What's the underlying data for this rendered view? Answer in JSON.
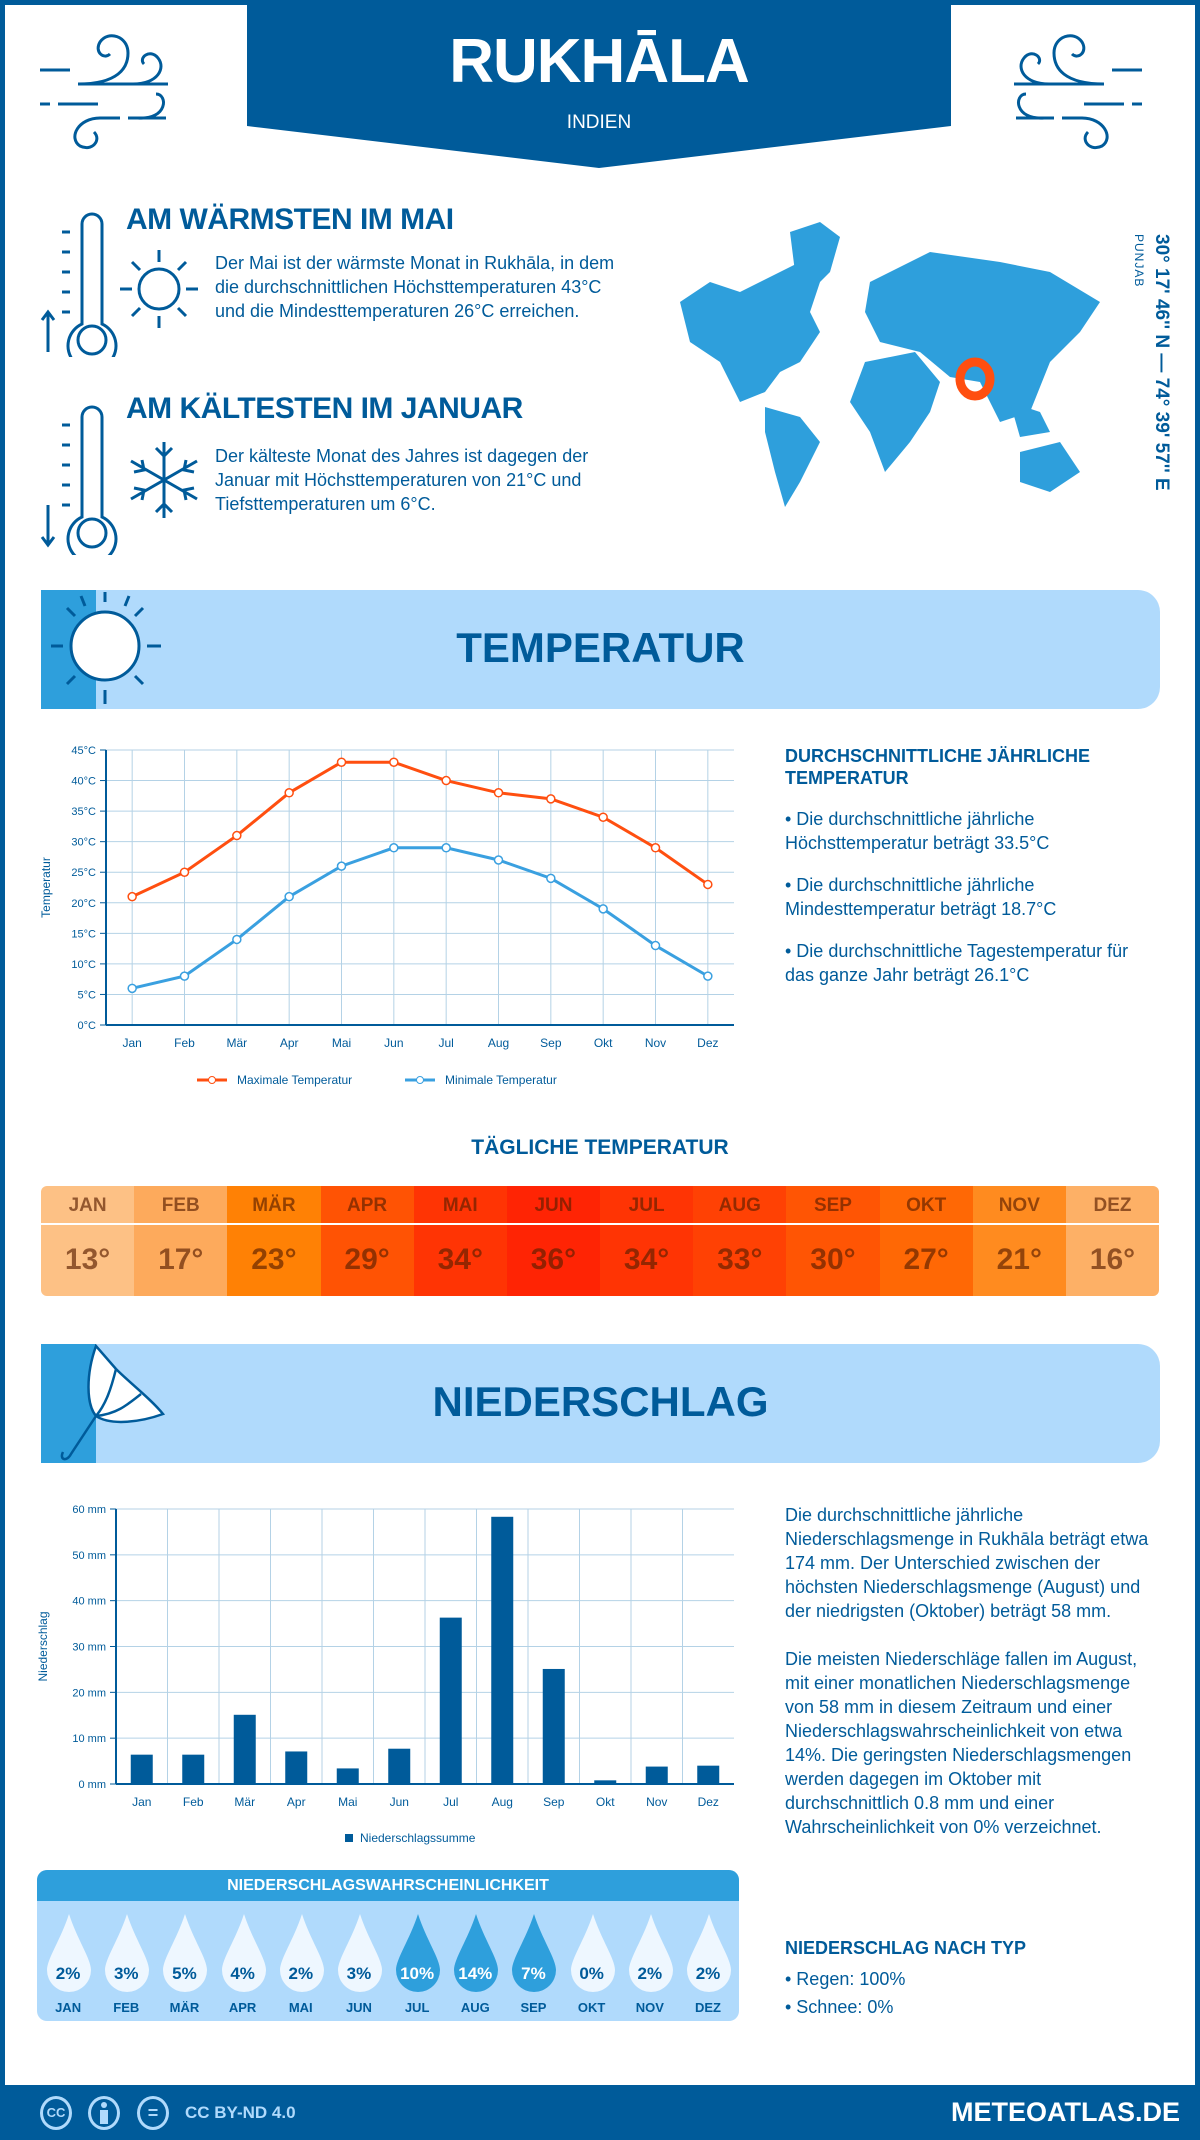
{
  "header": {
    "title": "RUKHĀLA",
    "country": "INDIEN"
  },
  "warmest": {
    "heading": "AM WÄRMSTEN IM MAI",
    "text": "Der Mai ist der wärmste Monat in Rukhāla, in dem die durchschnittlichen Höchsttemperaturen 43°C und die Mindesttemperaturen 26°C erreichen."
  },
  "coldest": {
    "heading": "AM KÄLTESTEN IM JANUAR",
    "text": "Der kälteste Monat des Jahres ist dagegen der Januar mit Höchsttemperaturen von 21°C und Tiefsttemperaturen um 6°C."
  },
  "map": {
    "region": "PUNJAB",
    "coordinates": "30° 17' 46'' N — 74° 39' 57'' E",
    "marker_color": "#ff4f10",
    "land_color": "#2e9fdc"
  },
  "temperature_section": {
    "title": "TEMPERATUR",
    "side_heading": "DURCHSCHNITTLICHE JÄHRLICHE TEMPERATUR",
    "bullets": [
      "• Die durchschnittliche jährliche Höchsttemperatur beträgt 33.5°C",
      "• Die durchschnittliche jährliche Mindesttemperatur beträgt 18.7°C",
      "• Die durchschnittliche Tagestemperatur für das ganze Jahr beträgt 26.1°C"
    ]
  },
  "daily": {
    "title": "TÄGLICHE TEMPERATUR",
    "months": [
      {
        "m": "JAN",
        "v": "13°",
        "color": "#fdc185"
      },
      {
        "m": "FEB",
        "v": "17°",
        "color": "#fdaa5c"
      },
      {
        "m": "MÄR",
        "v": "23°",
        "color": "#ff8105"
      },
      {
        "m": "APR",
        "v": "29°",
        "color": "#ff5304"
      },
      {
        "m": "MAI",
        "v": "34°",
        "color": "#ff3404"
      },
      {
        "m": "JUN",
        "v": "36°",
        "color": "#ff2404"
      },
      {
        "m": "JUL",
        "v": "34°",
        "color": "#ff3404"
      },
      {
        "m": "AUG",
        "v": "33°",
        "color": "#ff4104"
      },
      {
        "m": "SEP",
        "v": "30°",
        "color": "#ff5504"
      },
      {
        "m": "OKT",
        "v": "27°",
        "color": "#ff6805"
      },
      {
        "m": "NOV",
        "v": "21°",
        "color": "#ff8b1f"
      },
      {
        "m": "DEZ",
        "v": "16°",
        "color": "#fdb066"
      }
    ]
  },
  "precip_section": {
    "title": "NIEDERSCHLAG",
    "paragraphs": [
      "Die durchschnittliche jährliche Niederschlagsmenge in Rukhāla beträgt etwa 174 mm. Der Unterschied zwischen der höchsten Niederschlagsmenge (August) und der niedrigsten (Oktober) beträgt 58 mm.",
      "Die meisten Niederschläge fallen im August, mit einer monatlichen Niederschlagsmenge von 58 mm in diesem Zeitraum und einer Niederschlagswahrscheinlichkeit von etwa 14%. Die geringsten Niederschlagsmengen werden dagegen im Oktober mit durchschnittlich 0.8 mm und einer Wahrscheinlichkeit von 0% verzeichnet."
    ],
    "type_heading": "NIEDERSCHLAG NACH TYP",
    "types": [
      "• Regen: 100%",
      "• Schnee: 0%"
    ]
  },
  "probability": {
    "title": "NIEDERSCHLAGSWAHRSCHEINLICHKEIT",
    "months": [
      {
        "m": "JAN",
        "v": "2%",
        "fill": "#eef7ff"
      },
      {
        "m": "FEB",
        "v": "3%",
        "fill": "#eef7ff"
      },
      {
        "m": "MÄR",
        "v": "5%",
        "fill": "#eef7ff"
      },
      {
        "m": "APR",
        "v": "4%",
        "fill": "#eef7ff"
      },
      {
        "m": "MAI",
        "v": "2%",
        "fill": "#eef7ff"
      },
      {
        "m": "JUN",
        "v": "3%",
        "fill": "#eef7ff"
      },
      {
        "m": "JUL",
        "v": "10%",
        "fill": "#2e9fdc"
      },
      {
        "m": "AUG",
        "v": "14%",
        "fill": "#2e9fdc"
      },
      {
        "m": "SEP",
        "v": "7%",
        "fill": "#2e9fdc"
      },
      {
        "m": "OKT",
        "v": "0%",
        "fill": "#eef7ff"
      },
      {
        "m": "NOV",
        "v": "2%",
        "fill": "#eef7ff"
      },
      {
        "m": "DEZ",
        "v": "2%",
        "fill": "#eef7ff"
      }
    ]
  },
  "footer": {
    "license": "CC BY-ND 4.0",
    "brand": "METEOATLAS.DE",
    "icons": [
      "cc-icon",
      "by-icon",
      "nd-icon"
    ],
    "cc": "CC",
    "nd": "="
  },
  "chart_data": [
    {
      "type": "line",
      "categories": [
        "Jan",
        "Feb",
        "Mär",
        "Apr",
        "Mai",
        "Jun",
        "Jul",
        "Aug",
        "Sep",
        "Okt",
        "Nov",
        "Dez"
      ],
      "ylabel": "Temperatur",
      "ylim": [
        0,
        45
      ],
      "yticks": [
        "0°C",
        "5°C",
        "10°C",
        "15°C",
        "20°C",
        "25°C",
        "30°C",
        "35°C",
        "40°C",
        "45°C"
      ],
      "grid": true,
      "legend": "bottom",
      "series": [
        {
          "name": "Maximale Temperatur",
          "color": "#ff4f10",
          "values": [
            21,
            25,
            31,
            38,
            43,
            43,
            40,
            38,
            37,
            34,
            29,
            23
          ]
        },
        {
          "name": "Minimale Temperatur",
          "color": "#3aa0e0",
          "values": [
            6,
            8,
            14,
            21,
            26,
            29,
            29,
            27,
            24,
            19,
            13,
            8
          ]
        }
      ]
    },
    {
      "type": "bar",
      "categories": [
        "Jan",
        "Feb",
        "Mär",
        "Apr",
        "Mai",
        "Jun",
        "Jul",
        "Aug",
        "Sep",
        "Okt",
        "Nov",
        "Dez"
      ],
      "ylabel": "Niederschlag",
      "ylim": [
        0,
        60
      ],
      "yticks": [
        "0 mm",
        "10 mm",
        "20 mm",
        "30 mm",
        "40 mm",
        "50 mm",
        "60 mm"
      ],
      "grid": true,
      "legend": "bottom",
      "series": [
        {
          "name": "Niederschlagssumme",
          "color": "#005b9a",
          "values": [
            6.4,
            6.4,
            15.1,
            7.1,
            3.4,
            7.7,
            36.3,
            58.3,
            25.1,
            0.8,
            3.8,
            4.0
          ]
        }
      ]
    }
  ]
}
